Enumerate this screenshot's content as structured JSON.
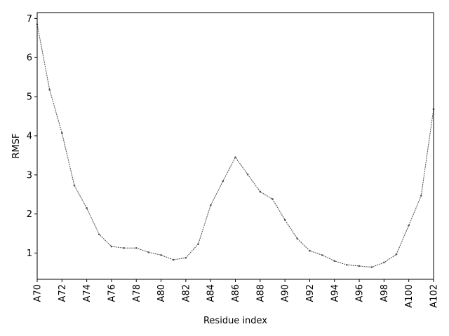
{
  "chart_data": {
    "type": "line",
    "title": "",
    "xlabel": "Residue index",
    "ylabel": "RMSF",
    "x": [
      "A70",
      "A71",
      "A72",
      "A73",
      "A74",
      "A75",
      "A76",
      "A77",
      "A78",
      "A79",
      "A80",
      "A81",
      "A82",
      "A83",
      "A84",
      "A85",
      "A86",
      "A87",
      "A88",
      "A89",
      "A90",
      "A91",
      "A92",
      "A93",
      "A94",
      "A95",
      "A96",
      "A97",
      "A98",
      "A99",
      "A100",
      "A101",
      "A102"
    ],
    "x_tick_labels": [
      "A70",
      "A72",
      "A74",
      "A76",
      "A78",
      "A80",
      "A82",
      "A84",
      "A86",
      "A88",
      "A90",
      "A92",
      "A94",
      "A96",
      "A98",
      "A100",
      "A102"
    ],
    "y_ticks": [
      1,
      2,
      3,
      4,
      5,
      6,
      7
    ],
    "ylim": [
      0.33,
      7.15
    ],
    "series": [
      {
        "values": [
          6.85,
          5.18,
          4.07,
          2.73,
          2.15,
          1.48,
          1.17,
          1.13,
          1.13,
          1.02,
          0.95,
          0.83,
          0.88,
          1.23,
          2.22,
          2.84,
          3.45,
          3.01,
          2.57,
          2.38,
          1.85,
          1.37,
          1.06,
          0.95,
          0.8,
          0.7,
          0.67,
          0.64,
          0.76,
          0.97,
          1.71,
          2.47,
          4.68
        ],
        "color": "#555555",
        "line_style": "dotted",
        "marker": "point"
      }
    ],
    "grid": false,
    "legend": "none"
  }
}
